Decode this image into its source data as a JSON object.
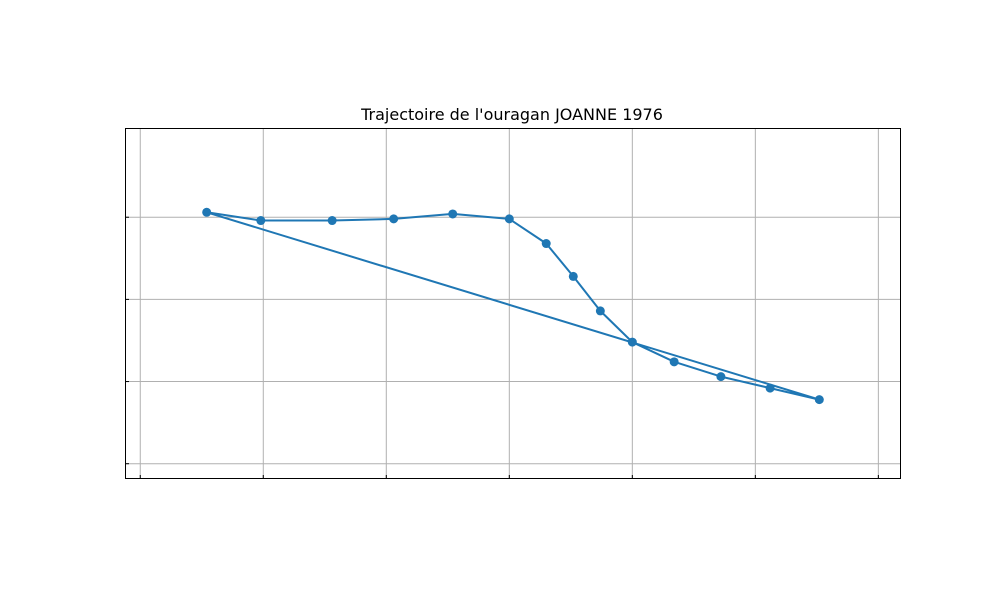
{
  "chart_data": {
    "type": "line",
    "title": "Trajectoire de l'ouragan JOANNE 1976",
    "xlabel": "",
    "ylabel": "",
    "xlim": [
      -120.6,
      -89.1
    ],
    "ylim": [
      12.1,
      33.4
    ],
    "grid": true,
    "x_grid": [
      -120,
      -115,
      -110,
      -105,
      -100,
      -95,
      -90
    ],
    "y_grid": [
      13,
      18,
      23,
      28
    ],
    "series": [
      {
        "color": "#1f77b4",
        "x": [
          -117.3,
          -115.1,
          -112.2,
          -109.7,
          -107.3,
          -105.0,
          -103.5,
          -102.4,
          -101.3,
          -100.0,
          -98.3,
          -96.4,
          -94.4,
          -92.4,
          -117.3
        ],
        "y": [
          28.3,
          27.8,
          27.8,
          27.9,
          28.2,
          27.9,
          26.4,
          24.4,
          22.3,
          20.4,
          19.2,
          18.3,
          17.6,
          16.9,
          28.3
        ]
      }
    ]
  }
}
